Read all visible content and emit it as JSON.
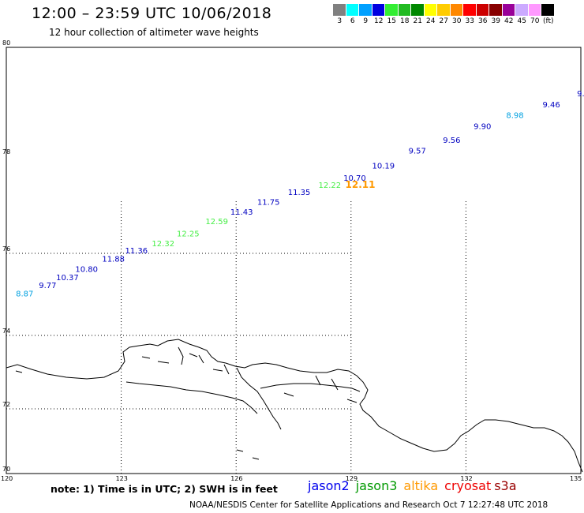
{
  "header": {
    "title": "12:00 – 23:59 UTC 10/06/2018",
    "subtitle": "12 hour collection of altimeter wave heights"
  },
  "colorbar": {
    "unit": "(ft)",
    "items": [
      {
        "label": "3",
        "color": "#808080"
      },
      {
        "label": "6",
        "color": "#00ffff"
      },
      {
        "label": "9",
        "color": "#00a0ff"
      },
      {
        "label": "12",
        "color": "#0000e0"
      },
      {
        "label": "15",
        "color": "#33ee33"
      },
      {
        "label": "18",
        "color": "#22bb22"
      },
      {
        "label": "21",
        "color": "#008800"
      },
      {
        "label": "24",
        "color": "#ffff00"
      },
      {
        "label": "27",
        "color": "#ffcc00"
      },
      {
        "label": "30",
        "color": "#ff8800"
      },
      {
        "label": "33",
        "color": "#ff0000"
      },
      {
        "label": "36",
        "color": "#cc0000"
      },
      {
        "label": "39",
        "color": "#880000"
      },
      {
        "label": "42",
        "color": "#990099"
      },
      {
        "label": "45",
        "color": "#ccaaff"
      },
      {
        "label": "70",
        "color": "#ff99ff"
      },
      {
        "label": "",
        "color": "#000000"
      }
    ]
  },
  "map": {
    "lon_range": [
      120,
      135
    ],
    "lat_range": [
      70,
      80
    ],
    "lon_labels": [
      "120",
      "123",
      "126",
      "129",
      "132",
      "135"
    ],
    "lat_labels": [
      "70",
      "72",
      "74",
      "76",
      "78",
      "80"
    ],
    "grid_lons": [
      123,
      126,
      129,
      132
    ],
    "grid_lats": [
      72,
      74,
      76
    ]
  },
  "observations": [
    {
      "lon": 120.25,
      "lat": 74.95,
      "swh": "8.87",
      "color": "#00a0e0"
    },
    {
      "lon": 120.85,
      "lat": 75.15,
      "swh": "9.77",
      "color": "#0000c0"
    },
    {
      "lon": 121.3,
      "lat": 75.35,
      "swh": "10.37",
      "color": "#0000c0"
    },
    {
      "lon": 121.8,
      "lat": 75.55,
      "swh": "10.80",
      "color": "#0000c0"
    },
    {
      "lon": 122.5,
      "lat": 75.8,
      "swh": "11.88",
      "color": "#0000c0"
    },
    {
      "lon": 123.1,
      "lat": 76.0,
      "swh": "11.36",
      "color": "#0000c0"
    },
    {
      "lon": 123.8,
      "lat": 76.15,
      "swh": "12.32",
      "color": "#44ee44"
    },
    {
      "lon": 124.45,
      "lat": 76.35,
      "swh": "12.25",
      "color": "#44ee44"
    },
    {
      "lon": 125.2,
      "lat": 76.6,
      "swh": "12.59",
      "color": "#44ee44"
    },
    {
      "lon": 125.85,
      "lat": 76.8,
      "swh": "11.43",
      "color": "#0000c0"
    },
    {
      "lon": 126.55,
      "lat": 77.0,
      "swh": "11.75",
      "color": "#0000c0"
    },
    {
      "lon": 127.35,
      "lat": 77.2,
      "swh": "11.35",
      "color": "#0000c0"
    },
    {
      "lon": 128.15,
      "lat": 77.35,
      "swh": "12.22",
      "color": "#44ee44"
    },
    {
      "lon": 128.8,
      "lat": 77.5,
      "swh": "10.70",
      "color": "#0000c0"
    },
    {
      "lon": 128.85,
      "lat": 77.35,
      "swh": "12.11",
      "color": "#ff9900"
    },
    {
      "lon": 129.55,
      "lat": 77.75,
      "swh": "10.19",
      "color": "#0000c0"
    },
    {
      "lon": 130.5,
      "lat": 78.05,
      "swh": "9.57",
      "color": "#0000c0"
    },
    {
      "lon": 131.4,
      "lat": 78.25,
      "swh": "9.56",
      "color": "#0000c0"
    },
    {
      "lon": 132.2,
      "lat": 78.5,
      "swh": "9.90",
      "color": "#0000c0"
    },
    {
      "lon": 133.05,
      "lat": 78.7,
      "swh": "8.98",
      "color": "#00a0e0"
    },
    {
      "lon": 134.0,
      "lat": 78.9,
      "swh": "9.46",
      "color": "#0000c0"
    },
    {
      "lon": 134.9,
      "lat": 79.1,
      "swh": "9.",
      "color": "#0000c0"
    }
  ],
  "footer": {
    "note": "note: 1) Time is in UTC; 2) SWH is in feet",
    "satellites": [
      {
        "name": "jason2",
        "color": "#0000ee"
      },
      {
        "name": "jason3",
        "color": "#009900"
      },
      {
        "name": "altika",
        "color": "#ff9900"
      },
      {
        "name": "cryosat",
        "color": "#ee0000"
      },
      {
        "name": "s3a",
        "color": "#990000"
      }
    ],
    "credit": "NOAA/NESDIS Center for Satellite Applications and Research    Oct  7 12:27:48 UTC 2018"
  }
}
